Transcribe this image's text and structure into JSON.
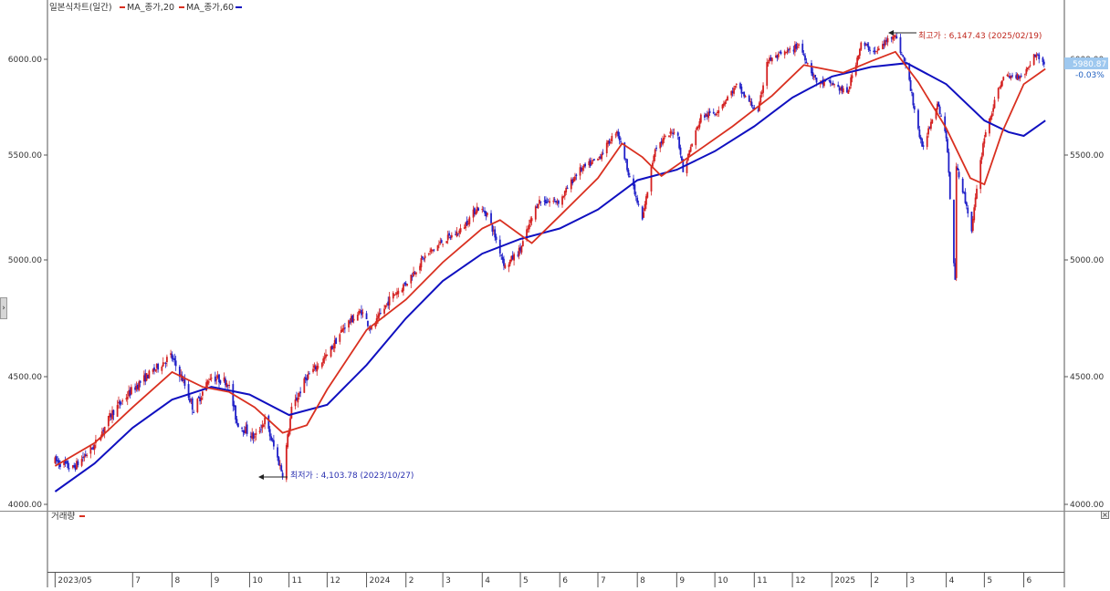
{
  "legend": {
    "title": "일본식차트(일간)",
    "ma20_label": "MA_종가,20",
    "ma60_label": "MA_종가,60"
  },
  "price_tag": {
    "value": "5980.87",
    "change": "-0.03%"
  },
  "annotations": {
    "high": "최고가 : 6,147.43 (2025/02/19)",
    "low": "최저가 : 4,103.78 (2023/10/27)"
  },
  "volume_pane": {
    "label": "거래량"
  },
  "toggle_label": "›",
  "close_label": "×",
  "colors": {
    "up": "#d42020",
    "down": "#2020c8",
    "ma20": "#d93020",
    "ma60": "#1010c0",
    "axis": "#555555",
    "grid": "#c8c8c8",
    "price_tag_bg": "#9ec8ef"
  },
  "chart_data": {
    "type": "candlestick",
    "y_axis": {
      "ticks": [
        "6000.00",
        "5500.00",
        "5000.00",
        "4500.00",
        "4000.00"
      ],
      "ylim": [
        4000,
        6220
      ]
    },
    "x_axis": {
      "ticks": [
        "2023/05",
        "7",
        "8",
        "9",
        "10",
        "11",
        "12",
        "2024",
        "2",
        "3",
        "4",
        "5",
        "6",
        "7",
        "8",
        "9",
        "10",
        "11",
        "12",
        "2025",
        "2",
        "3",
        "4",
        "5",
        "6"
      ]
    },
    "price_anchors": [
      [
        "2023-05-01",
        4170
      ],
      [
        "2023-05-15",
        4140
      ],
      [
        "2023-06-01",
        4230
      ],
      [
        "2023-06-15",
        4360
      ],
      [
        "2023-07-01",
        4450
      ],
      [
        "2023-07-31",
        4590
      ],
      [
        "2023-08-10",
        4480
      ],
      [
        "2023-08-18",
        4370
      ],
      [
        "2023-08-31",
        4500
      ],
      [
        "2023-09-14",
        4480
      ],
      [
        "2023-09-21",
        4320
      ],
      [
        "2023-10-05",
        4260
      ],
      [
        "2023-10-13",
        4330
      ],
      [
        "2023-10-27",
        4120
      ],
      [
        "2023-11-03",
        4370
      ],
      [
        "2023-11-15",
        4500
      ],
      [
        "2023-12-01",
        4590
      ],
      [
        "2023-12-15",
        4720
      ],
      [
        "2023-12-28",
        4780
      ],
      [
        "2024-01-05",
        4700
      ],
      [
        "2024-01-20",
        4840
      ],
      [
        "2024-02-01",
        4900
      ],
      [
        "2024-02-15",
        5010
      ],
      [
        "2024-03-01",
        5090
      ],
      [
        "2024-03-15",
        5140
      ],
      [
        "2024-03-28",
        5250
      ],
      [
        "2024-04-05",
        5220
      ],
      [
        "2024-04-19",
        4970
      ],
      [
        "2024-05-01",
        5050
      ],
      [
        "2024-05-15",
        5280
      ],
      [
        "2024-06-01",
        5280
      ],
      [
        "2024-06-15",
        5420
      ],
      [
        "2024-07-01",
        5480
      ],
      [
        "2024-07-16",
        5630
      ],
      [
        "2024-07-25",
        5420
      ],
      [
        "2024-08-05",
        5190
      ],
      [
        "2024-08-15",
        5540
      ],
      [
        "2024-09-01",
        5640
      ],
      [
        "2024-09-06",
        5420
      ],
      [
        "2024-09-20",
        5700
      ],
      [
        "2024-10-01",
        5720
      ],
      [
        "2024-10-18",
        5860
      ],
      [
        "2024-11-04",
        5720
      ],
      [
        "2024-11-11",
        5990
      ],
      [
        "2024-12-01",
        6050
      ],
      [
        "2024-12-06",
        6080
      ],
      [
        "2024-12-20",
        5880
      ],
      [
        "2025-01-02",
        5870
      ],
      [
        "2025-01-13",
        5820
      ],
      [
        "2025-01-24",
        6080
      ],
      [
        "2025-02-05",
        6040
      ],
      [
        "2025-02-19",
        6140
      ],
      [
        "2025-03-01",
        5950
      ],
      [
        "2025-03-13",
        5530
      ],
      [
        "2025-03-25",
        5780
      ],
      [
        "2025-04-01",
        5600
      ],
      [
        "2025-04-08",
        4900
      ],
      [
        "2025-04-09",
        5460
      ],
      [
        "2025-04-21",
        5150
      ],
      [
        "2025-05-01",
        5600
      ],
      [
        "2025-05-15",
        5900
      ],
      [
        "2025-06-01",
        5920
      ],
      [
        "2025-06-10",
        6030
      ],
      [
        "2025-06-17",
        5980
      ]
    ],
    "ma20": [
      [
        "2023-05-01",
        4150
      ],
      [
        "2023-06-01",
        4240
      ],
      [
        "2023-07-01",
        4380
      ],
      [
        "2023-08-01",
        4520
      ],
      [
        "2023-08-25",
        4460
      ],
      [
        "2023-09-15",
        4440
      ],
      [
        "2023-10-05",
        4380
      ],
      [
        "2023-10-27",
        4280
      ],
      [
        "2023-11-15",
        4310
      ],
      [
        "2023-12-01",
        4450
      ],
      [
        "2024-01-01",
        4700
      ],
      [
        "2024-02-01",
        4830
      ],
      [
        "2024-03-01",
        4990
      ],
      [
        "2024-04-01",
        5150
      ],
      [
        "2024-04-15",
        5190
      ],
      [
        "2024-05-10",
        5080
      ],
      [
        "2024-06-01",
        5210
      ],
      [
        "2024-07-01",
        5390
      ],
      [
        "2024-07-20",
        5560
      ],
      [
        "2024-08-05",
        5490
      ],
      [
        "2024-08-20",
        5400
      ],
      [
        "2024-09-15",
        5510
      ],
      [
        "2024-10-15",
        5650
      ],
      [
        "2024-11-15",
        5810
      ],
      [
        "2024-12-10",
        5970
      ],
      [
        "2025-01-10",
        5930
      ],
      [
        "2025-02-01",
        5990
      ],
      [
        "2025-02-20",
        6040
      ],
      [
        "2025-03-10",
        5880
      ],
      [
        "2025-04-01",
        5640
      ],
      [
        "2025-04-20",
        5390
      ],
      [
        "2025-05-01",
        5360
      ],
      [
        "2025-05-15",
        5620
      ],
      [
        "2025-06-01",
        5870
      ],
      [
        "2025-06-18",
        5950
      ]
    ],
    "ma60": [
      [
        "2023-05-01",
        4050
      ],
      [
        "2023-06-01",
        4160
      ],
      [
        "2023-07-01",
        4300
      ],
      [
        "2023-08-01",
        4410
      ],
      [
        "2023-09-01",
        4460
      ],
      [
        "2023-10-01",
        4430
      ],
      [
        "2023-11-01",
        4350
      ],
      [
        "2023-12-01",
        4390
      ],
      [
        "2024-01-01",
        4550
      ],
      [
        "2024-02-01",
        4750
      ],
      [
        "2024-03-01",
        4910
      ],
      [
        "2024-04-01",
        5030
      ],
      [
        "2024-05-01",
        5100
      ],
      [
        "2024-06-01",
        5150
      ],
      [
        "2024-07-01",
        5240
      ],
      [
        "2024-08-01",
        5380
      ],
      [
        "2024-09-01",
        5430
      ],
      [
        "2024-10-01",
        5520
      ],
      [
        "2024-11-01",
        5650
      ],
      [
        "2024-12-01",
        5800
      ],
      [
        "2025-01-01",
        5910
      ],
      [
        "2025-02-01",
        5960
      ],
      [
        "2025-03-01",
        5980
      ],
      [
        "2025-04-01",
        5870
      ],
      [
        "2025-05-01",
        5680
      ],
      [
        "2025-05-20",
        5620
      ],
      [
        "2025-06-01",
        5600
      ],
      [
        "2025-06-18",
        5680
      ]
    ]
  }
}
